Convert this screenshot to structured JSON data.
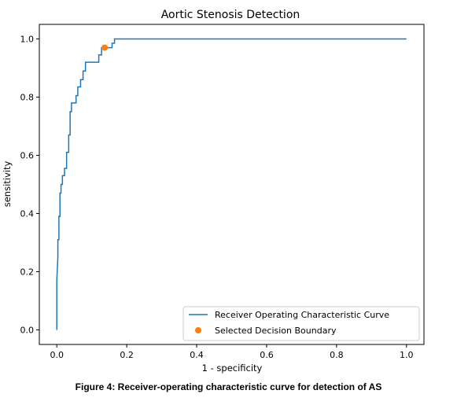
{
  "caption": "Figure 4: Receiver-operating characteristic curve for detection of AS",
  "chart_data": {
    "type": "line",
    "title": "Aortic Stenosis Detection",
    "xlabel": "1 - specificity",
    "ylabel": "sensitivity",
    "xlim": [
      -0.05,
      1.05
    ],
    "ylim": [
      -0.05,
      1.05
    ],
    "xticks": [
      0.0,
      0.2,
      0.4,
      0.6,
      0.8,
      1.0
    ],
    "yticks": [
      0.0,
      0.2,
      0.4,
      0.6,
      0.8,
      1.0
    ],
    "xtick_labels": [
      "0.0",
      "0.2",
      "0.4",
      "0.6",
      "0.8",
      "1.0"
    ],
    "ytick_labels": [
      "0.0",
      "0.2",
      "0.4",
      "0.6",
      "0.8",
      "1.0"
    ],
    "grid": false,
    "legend_position": "lower-right",
    "series": [
      {
        "name": "Receiver Operating Characteristic Curve",
        "kind": "line",
        "color": "#1f77b4",
        "x": [
          0.0,
          0.0,
          0.0,
          0.003,
          0.003,
          0.006,
          0.006,
          0.009,
          0.009,
          0.012,
          0.012,
          0.016,
          0.016,
          0.022,
          0.022,
          0.028,
          0.028,
          0.034,
          0.034,
          0.038,
          0.038,
          0.042,
          0.042,
          0.055,
          0.055,
          0.06,
          0.06,
          0.068,
          0.068,
          0.075,
          0.075,
          0.082,
          0.082,
          0.088,
          0.088,
          0.095,
          0.095,
          0.12,
          0.12,
          0.128,
          0.128,
          0.14,
          0.14,
          0.158,
          0.158,
          0.165,
          0.165,
          1.0
        ],
        "y": [
          0.0,
          0.17,
          0.17,
          0.25,
          0.31,
          0.31,
          0.39,
          0.39,
          0.47,
          0.47,
          0.5,
          0.5,
          0.53,
          0.53,
          0.555,
          0.555,
          0.61,
          0.61,
          0.67,
          0.67,
          0.75,
          0.75,
          0.78,
          0.78,
          0.805,
          0.805,
          0.835,
          0.835,
          0.86,
          0.86,
          0.89,
          0.89,
          0.92,
          0.92,
          0.92,
          0.92,
          0.92,
          0.92,
          0.945,
          0.945,
          0.97,
          0.97,
          0.97,
          0.97,
          0.985,
          0.985,
          1.0,
          1.0
        ]
      },
      {
        "name": "Selected Decision Boundary",
        "kind": "point",
        "color": "#ff7f0e",
        "x": [
          0.137
        ],
        "y": [
          0.97
        ]
      }
    ]
  }
}
